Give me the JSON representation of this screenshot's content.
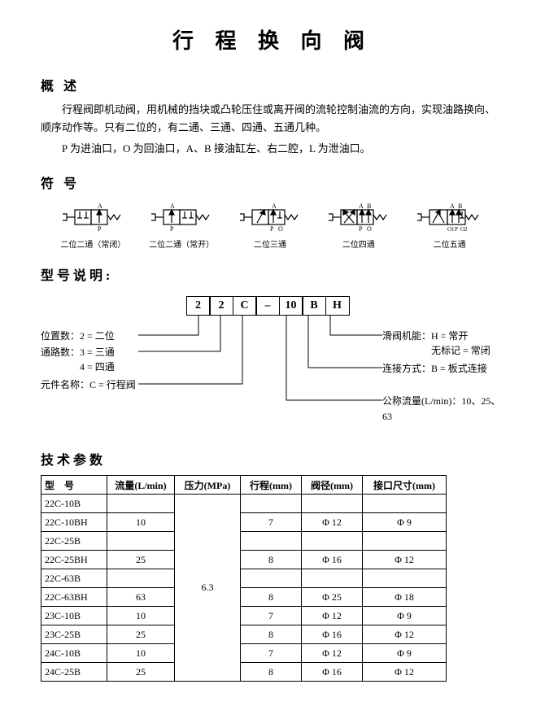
{
  "title": "行 程 换 向 阀",
  "sections": {
    "overview_h": "概 述",
    "overview_p1": "行程阀即机动阀，用机械的挡块或凸轮压住或离开阀的流轮控制油流的方向，实现油路换向、顺序动作等。只有二位的，有二通、三通、四通、五通几种。",
    "overview_p2": "P 为进油口，O 为回油口，A、B 接油缸左、右二腔，L 为泄油口。",
    "symbols_h": "符 号",
    "model_h": "型号说明:",
    "params_h": "技术参数"
  },
  "symbols": [
    {
      "label": "二位二通（常闭）"
    },
    {
      "label": "二位二通（常开）"
    },
    {
      "label": "二位三通"
    },
    {
      "label": "二位四通"
    },
    {
      "label": "二位五通"
    }
  ],
  "model_boxes": [
    "2",
    "2",
    "C",
    "–",
    "10",
    "B",
    "H"
  ],
  "model_explain": {
    "left1": "位置数：2 = 二位",
    "left2": "通路数：3 = 三通",
    "left2b": "　　　　4 = 四通",
    "left3": "元件名称：C = 行程阀",
    "right1": "滑阀机能：H = 常开",
    "right1b": "　　　　　无标记 = 常闭",
    "right2": "连接方式：B = 板式连接",
    "right3": "公称流量(L/min)：10、25、63"
  },
  "table": {
    "headers": [
      "型　号",
      "流量(L/min)",
      "压力(MPa)",
      "行程(mm)",
      "阀径(mm)",
      "接口尺寸(mm)"
    ],
    "rows": [
      {
        "model": "22C-10B",
        "flow": "",
        "stroke": "",
        "diam": "",
        "port": ""
      },
      {
        "model": "22C-10BH",
        "flow": "10",
        "stroke": "7",
        "diam": "Φ 12",
        "port": "Φ 9"
      },
      {
        "model": "22C-25B",
        "flow": "",
        "stroke": "",
        "diam": "",
        "port": ""
      },
      {
        "model": "22C-25BH",
        "flow": "25",
        "stroke": "8",
        "diam": "Φ 16",
        "port": "Φ 12"
      },
      {
        "model": "22C-63B",
        "flow": "",
        "stroke": "",
        "diam": "",
        "port": ""
      },
      {
        "model": "22C-63BH",
        "flow": "63",
        "stroke": "8",
        "diam": "Φ 25",
        "port": "Φ 18"
      },
      {
        "model": "23C-10B",
        "flow": "10",
        "stroke": "7",
        "diam": "Φ 12",
        "port": "Φ 9"
      },
      {
        "model": "23C-25B",
        "flow": "25",
        "stroke": "8",
        "diam": "Φ 16",
        "port": "Φ 12"
      },
      {
        "model": "24C-10B",
        "flow": "10",
        "stroke": "7",
        "diam": "Φ 12",
        "port": "Φ 9"
      },
      {
        "model": "24C-25B",
        "flow": "25",
        "stroke": "8",
        "diam": "Φ 16",
        "port": "Φ 12"
      }
    ],
    "pressure": "6.3"
  },
  "colors": {
    "line": "#000000",
    "bg": "#ffffff"
  }
}
